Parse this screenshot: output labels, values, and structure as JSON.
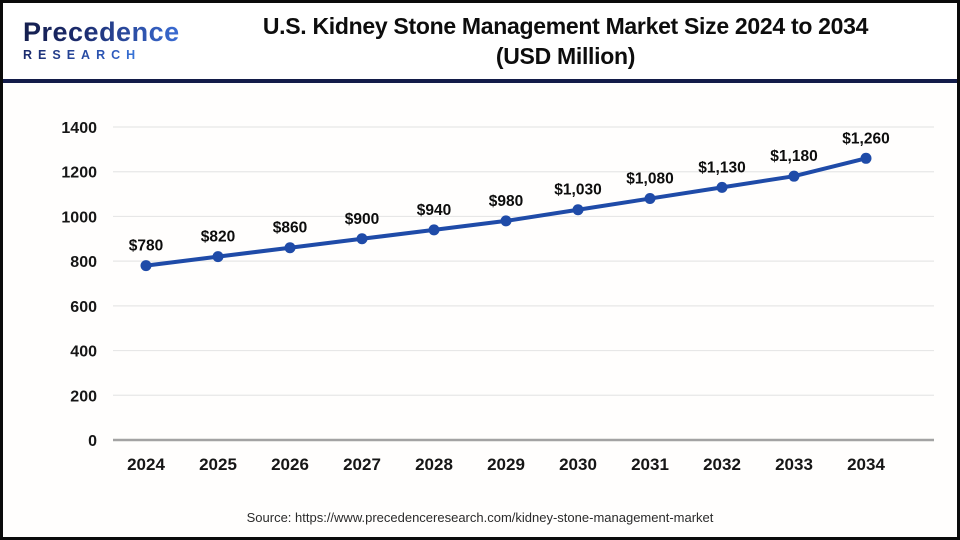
{
  "header": {
    "logo_line1": "Precedence",
    "logo_line2": "RESEARCH",
    "title_line1": "U.S. Kidney Stone Management Market Size 2024 to 2034",
    "title_line2": "(USD Million)"
  },
  "chart_data": {
    "type": "line",
    "title": "U.S. Kidney Stone Management Market Size 2024 to 2034 (USD Million)",
    "categories": [
      "2024",
      "2025",
      "2026",
      "2027",
      "2028",
      "2029",
      "2030",
      "2031",
      "2032",
      "2033",
      "2034"
    ],
    "values": [
      780,
      820,
      860,
      900,
      940,
      980,
      1030,
      1080,
      1130,
      1180,
      1260
    ],
    "point_labels": [
      "$780",
      "$820",
      "$860",
      "$900",
      "$940",
      "$980",
      "$1,030",
      "$1,080",
      "$1,130",
      "$1,180",
      "$1,260"
    ],
    "xlabel": "",
    "ylabel": "",
    "ylim": [
      0,
      1400
    ],
    "ytick_step": 200,
    "grid": true,
    "legend": "none",
    "line_color": "#1f4ba8",
    "marker_color": "#1f4ba8",
    "grid_color": "#e7e7e7",
    "axis_color": "#a3a3a3"
  },
  "footer": {
    "source": "Source: https://www.precedenceresearch.com/kidney-stone-management-market"
  },
  "colors": {
    "separator_navy": "#131c49",
    "frame_border": "#0b0b0b",
    "logo_navy": "#1b2a6b",
    "logo_blue": "#3a6cd4"
  }
}
